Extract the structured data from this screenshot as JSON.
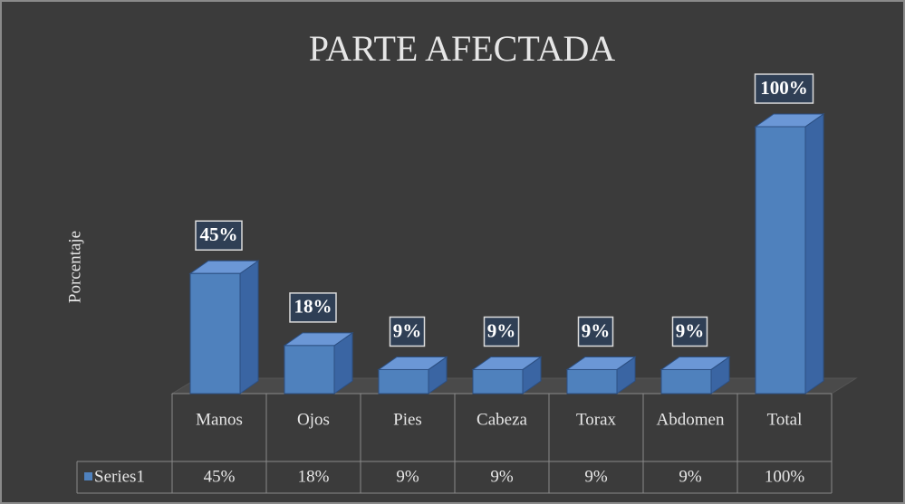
{
  "chart_data": {
    "type": "bar3d",
    "title": "PARTE AFECTADA",
    "y_label": "Porcentaje",
    "categories": [
      "Manos",
      "Ojos",
      "Pies",
      "Cabeza",
      "Torax",
      "Abdomen",
      "Total"
    ],
    "series": [
      {
        "name": "Series1",
        "color": "#4f81bd",
        "values": [
          45,
          18,
          9,
          9,
          9,
          9,
          100
        ],
        "value_labels": [
          "45%",
          "18%",
          "9%",
          "9%",
          "9%",
          "9%",
          "100%"
        ]
      }
    ],
    "data_table": true
  }
}
